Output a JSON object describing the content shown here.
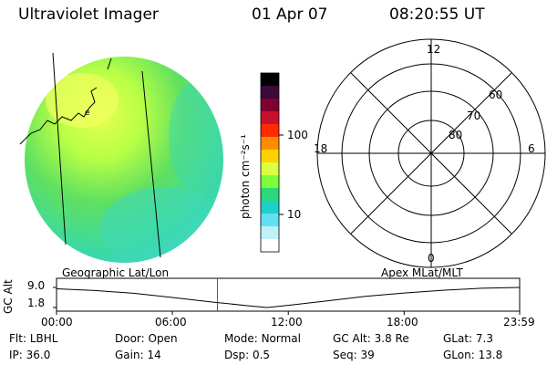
{
  "header": {
    "title": "Ultraviolet Imager",
    "date": "01 Apr 07",
    "time": "08:20:55 UT"
  },
  "colorbar": {
    "unit": "photon cm⁻²s⁻¹",
    "ticks": [
      "100",
      "10"
    ],
    "colors": [
      "#000000",
      "#3a0a3a",
      "#800030",
      "#c8102e",
      "#ff2a00",
      "#ff8c00",
      "#ffd000",
      "#d8ff40",
      "#7cff3a",
      "#2bd87a",
      "#1fd0c8",
      "#60e0f0",
      "#c0f0f8",
      "#ffffff"
    ]
  },
  "polar_grid": {
    "mlt_labels": [
      "12",
      "18",
      "6",
      "0"
    ],
    "lat_labels": [
      "60",
      "70",
      "80"
    ]
  },
  "panel_labels": {
    "left": "Geographic Lat/Lon",
    "right": "Apex MLat/MLT"
  },
  "altitude_strip": {
    "ylabel": "GC Alt",
    "y_ticks": [
      "9.0",
      "1.8"
    ],
    "x_ticks": [
      "00:00",
      "06:00",
      "12:00",
      "18:00",
      "23:59"
    ],
    "current_time_marker": "08:20",
    "x": [
      0,
      2,
      4,
      6,
      8,
      10,
      10.9,
      12,
      14,
      16,
      18,
      20,
      22,
      23.98
    ],
    "y": [
      8.5,
      7.9,
      6.9,
      5.4,
      3.8,
      2.4,
      1.8,
      2.6,
      4.2,
      5.8,
      7.0,
      8.0,
      8.7,
      9.0
    ]
  },
  "info": {
    "flt": {
      "label": "Flt:",
      "value": "LBHL"
    },
    "ip": {
      "label": "IP:",
      "value": "36.0"
    },
    "door": {
      "label": "Door:",
      "value": "Open"
    },
    "gain": {
      "label": "Gain:",
      "value": "14"
    },
    "mode": {
      "label": "Mode:",
      "value": "Normal"
    },
    "dsp": {
      "label": "Dsp:",
      "value": "0.5"
    },
    "gcalt": {
      "label": "GC Alt:",
      "value": "3.8 Re"
    },
    "seq": {
      "label": "Seq:",
      "value": "39"
    },
    "glat": {
      "label": "GLat:",
      "value": "7.3"
    },
    "glon": {
      "label": "GLon:",
      "value": "13.8"
    }
  }
}
